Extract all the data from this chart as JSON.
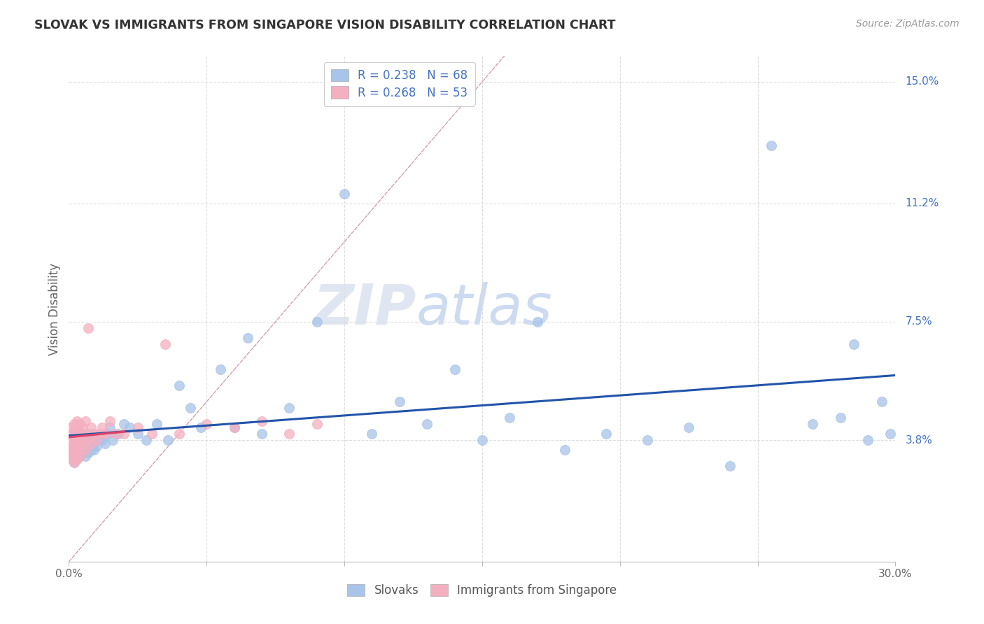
{
  "title": "SLOVAK VS IMMIGRANTS FROM SINGAPORE VISION DISABILITY CORRELATION CHART",
  "source": "Source: ZipAtlas.com",
  "ylabel": "Vision Disability",
  "xlim": [
    0.0,
    0.3
  ],
  "ylim": [
    0.0,
    0.158
  ],
  "xticks": [
    0.0,
    0.05,
    0.1,
    0.15,
    0.2,
    0.25,
    0.3
  ],
  "xticklabels": [
    "0.0%",
    "",
    "",
    "",
    "",
    "",
    "30.0%"
  ],
  "ytick_positions": [
    0.038,
    0.075,
    0.112,
    0.15
  ],
  "ytick_labels": [
    "3.8%",
    "7.5%",
    "11.2%",
    "15.0%"
  ],
  "legend_label1": "Slovaks",
  "legend_label2": "Immigrants from Singapore",
  "blue_color": "#a8c4e8",
  "pink_color": "#f4afc0",
  "blue_line_color": "#2255aa",
  "pink_line_color": "#dd4466",
  "diagonal_color": "#d0a0b0",
  "watermark_zip": "ZIP",
  "watermark_atlas": "atlas",
  "slovaks_x": [
    0.001,
    0.001,
    0.002,
    0.002,
    0.002,
    0.003,
    0.003,
    0.003,
    0.003,
    0.004,
    0.004,
    0.004,
    0.005,
    0.005,
    0.005,
    0.006,
    0.006,
    0.006,
    0.007,
    0.007,
    0.007,
    0.008,
    0.008,
    0.009,
    0.009,
    0.01,
    0.011,
    0.012,
    0.013,
    0.014,
    0.015,
    0.016,
    0.018,
    0.02,
    0.022,
    0.025,
    0.028,
    0.032,
    0.036,
    0.04,
    0.044,
    0.048,
    0.055,
    0.06,
    0.065,
    0.07,
    0.08,
    0.09,
    0.1,
    0.11,
    0.12,
    0.13,
    0.14,
    0.15,
    0.16,
    0.17,
    0.18,
    0.195,
    0.21,
    0.225,
    0.24,
    0.255,
    0.27,
    0.28,
    0.285,
    0.29,
    0.295,
    0.298
  ],
  "slovaks_y": [
    0.033,
    0.036,
    0.031,
    0.034,
    0.037,
    0.032,
    0.035,
    0.038,
    0.04,
    0.033,
    0.036,
    0.039,
    0.034,
    0.037,
    0.04,
    0.033,
    0.036,
    0.038,
    0.034,
    0.037,
    0.04,
    0.035,
    0.038,
    0.035,
    0.037,
    0.036,
    0.038,
    0.038,
    0.037,
    0.04,
    0.042,
    0.038,
    0.04,
    0.043,
    0.042,
    0.04,
    0.038,
    0.043,
    0.038,
    0.055,
    0.048,
    0.042,
    0.06,
    0.042,
    0.07,
    0.04,
    0.048,
    0.075,
    0.115,
    0.04,
    0.05,
    0.043,
    0.06,
    0.038,
    0.045,
    0.075,
    0.035,
    0.04,
    0.038,
    0.042,
    0.03,
    0.13,
    0.043,
    0.045,
    0.068,
    0.038,
    0.05,
    0.04
  ],
  "singapore_x": [
    0.001,
    0.001,
    0.001,
    0.001,
    0.001,
    0.001,
    0.001,
    0.002,
    0.002,
    0.002,
    0.002,
    0.002,
    0.002,
    0.002,
    0.003,
    0.003,
    0.003,
    0.003,
    0.003,
    0.003,
    0.003,
    0.004,
    0.004,
    0.004,
    0.004,
    0.004,
    0.005,
    0.005,
    0.005,
    0.006,
    0.006,
    0.006,
    0.007,
    0.007,
    0.008,
    0.008,
    0.009,
    0.01,
    0.011,
    0.012,
    0.013,
    0.015,
    0.017,
    0.02,
    0.025,
    0.03,
    0.035,
    0.04,
    0.05,
    0.06,
    0.07,
    0.08,
    0.09
  ],
  "singapore_y": [
    0.032,
    0.034,
    0.035,
    0.036,
    0.038,
    0.04,
    0.042,
    0.031,
    0.033,
    0.035,
    0.037,
    0.039,
    0.041,
    0.043,
    0.032,
    0.034,
    0.036,
    0.038,
    0.04,
    0.042,
    0.044,
    0.033,
    0.035,
    0.038,
    0.04,
    0.043,
    0.036,
    0.038,
    0.042,
    0.035,
    0.04,
    0.044,
    0.038,
    0.073,
    0.037,
    0.042,
    0.04,
    0.038,
    0.04,
    0.042,
    0.04,
    0.044,
    0.04,
    0.04,
    0.042,
    0.04,
    0.068,
    0.04,
    0.043,
    0.042,
    0.044,
    0.04,
    0.043
  ]
}
